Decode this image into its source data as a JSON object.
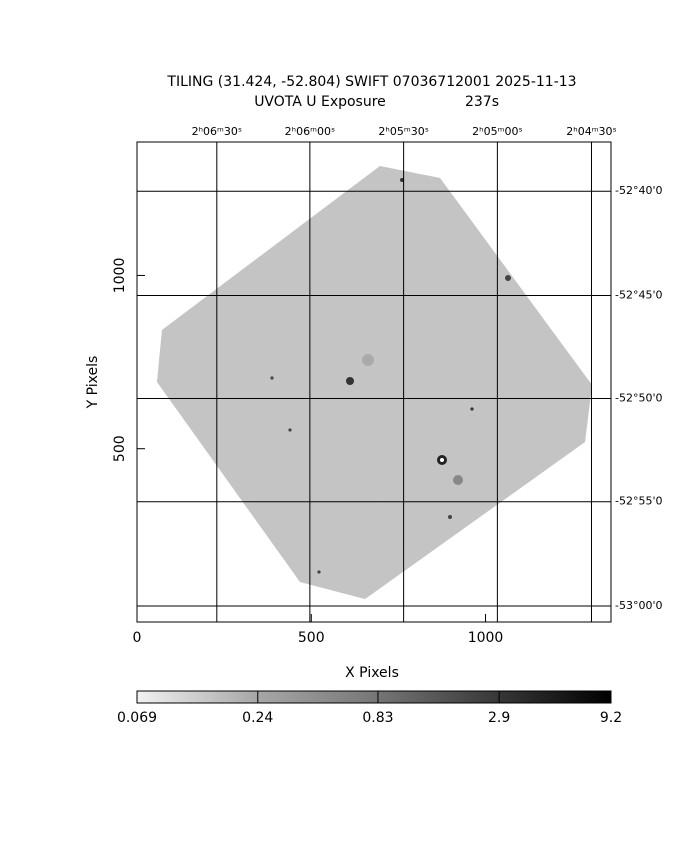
{
  "chart_data": {
    "type": "image",
    "title": "TILING (31.424, -52.804) SWIFT 07036712001 2025-11-13",
    "subtitle": "UVOTA U Exposure",
    "exposure": "237s",
    "x_label": "X Pixels",
    "y_label": "Y Pixels",
    "xlim": [
      0,
      1360
    ],
    "ylim": [
      0,
      1385
    ],
    "xticks": [
      0,
      500,
      1000
    ],
    "yticks": [
      500,
      1000
    ],
    "x2ticks": [
      {
        "value": 229,
        "label": "2ʰ06ᵐ30ˢ"
      },
      {
        "value": 496,
        "label": "2ʰ06ᵐ00ˢ"
      },
      {
        "value": 765,
        "label": "2ʰ05ᵐ30ˢ"
      },
      {
        "value": 1034,
        "label": "2ʰ05ᵐ00ˢ"
      },
      {
        "value": 1304,
        "label": "2ʰ04ᵐ30ˢ"
      }
    ],
    "y2ticks": [
      {
        "value": 1243,
        "label": "-52°40'0"
      },
      {
        "value": 942,
        "label": "-52°45'0"
      },
      {
        "value": 645,
        "label": "-52°50'0"
      },
      {
        "value": 347,
        "label": "-52°55'0"
      },
      {
        "value": 46,
        "label": "-53°00'0"
      }
    ],
    "colorbar": {
      "scale": "log",
      "lim": [
        0.069,
        9.2
      ],
      "ticks": [
        0.069,
        0.24,
        0.83,
        2.9,
        9.2
      ]
    }
  }
}
